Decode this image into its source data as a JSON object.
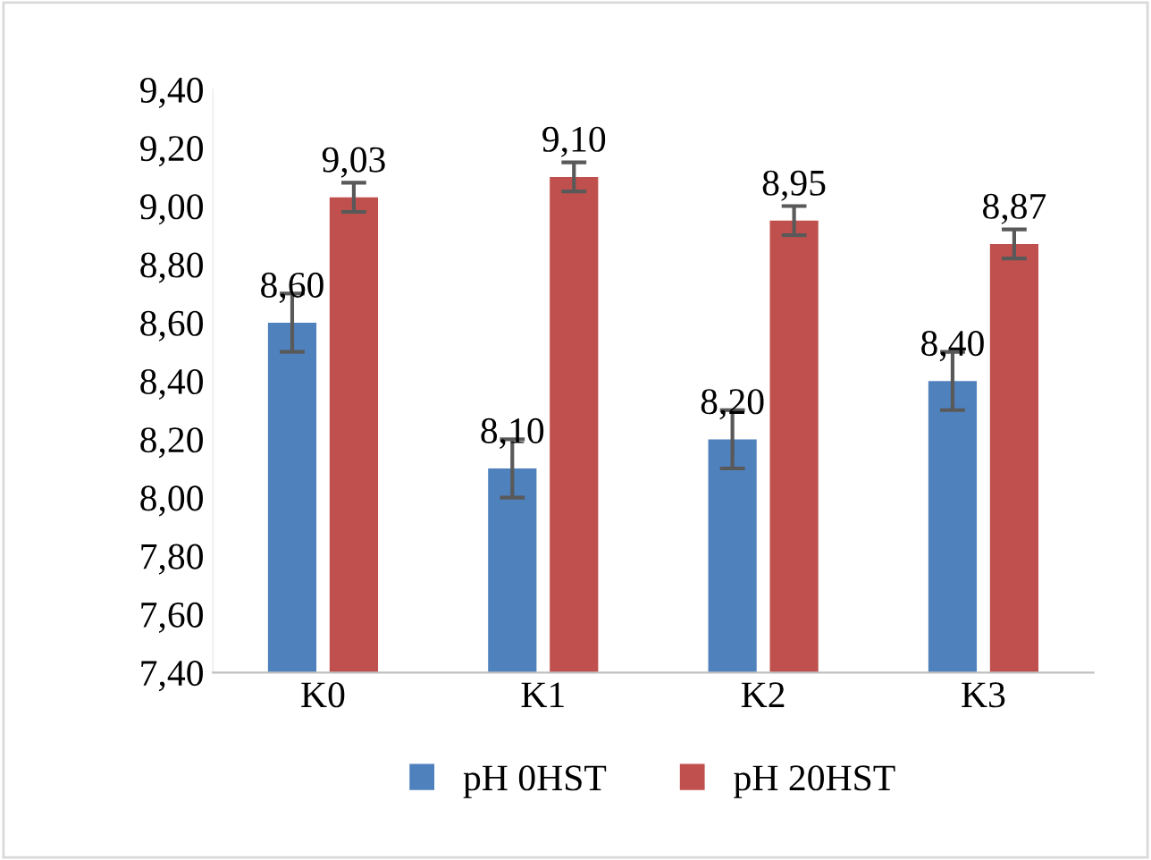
{
  "chart_data": {
    "type": "bar",
    "categories": [
      "K0",
      "K1",
      "K2",
      "K3"
    ],
    "series": [
      {
        "name": "pH 0HST",
        "color": "#4f81bd",
        "values": [
          8.6,
          8.1,
          8.2,
          8.4
        ],
        "errors": [
          0.1,
          0.1,
          0.1,
          0.1
        ],
        "value_labels": [
          "8,60",
          "8,10",
          "8,20",
          "8,40"
        ]
      },
      {
        "name": "pH 20HST",
        "color": "#c0504d",
        "values": [
          9.03,
          9.1,
          8.95,
          8.87
        ],
        "errors": [
          0.05,
          0.05,
          0.05,
          0.05
        ],
        "value_labels": [
          "9,03",
          "9,10",
          "8,95",
          "8,87"
        ]
      }
    ],
    "ylim": [
      7.4,
      9.4
    ],
    "yticks": [
      {
        "value": 7.4,
        "label": "7,40"
      },
      {
        "value": 7.6,
        "label": "7,60"
      },
      {
        "value": 7.8,
        "label": "7,80"
      },
      {
        "value": 8.0,
        "label": "8,00"
      },
      {
        "value": 8.2,
        "label": "8,20"
      },
      {
        "value": 8.4,
        "label": "8,40"
      },
      {
        "value": 8.6,
        "label": "8,60"
      },
      {
        "value": 8.8,
        "label": "8,80"
      },
      {
        "value": 9.0,
        "label": "9,00"
      },
      {
        "value": 9.2,
        "label": "9,20"
      },
      {
        "value": 9.4,
        "label": "9,40"
      }
    ],
    "grid": false,
    "legend": "bottom"
  }
}
